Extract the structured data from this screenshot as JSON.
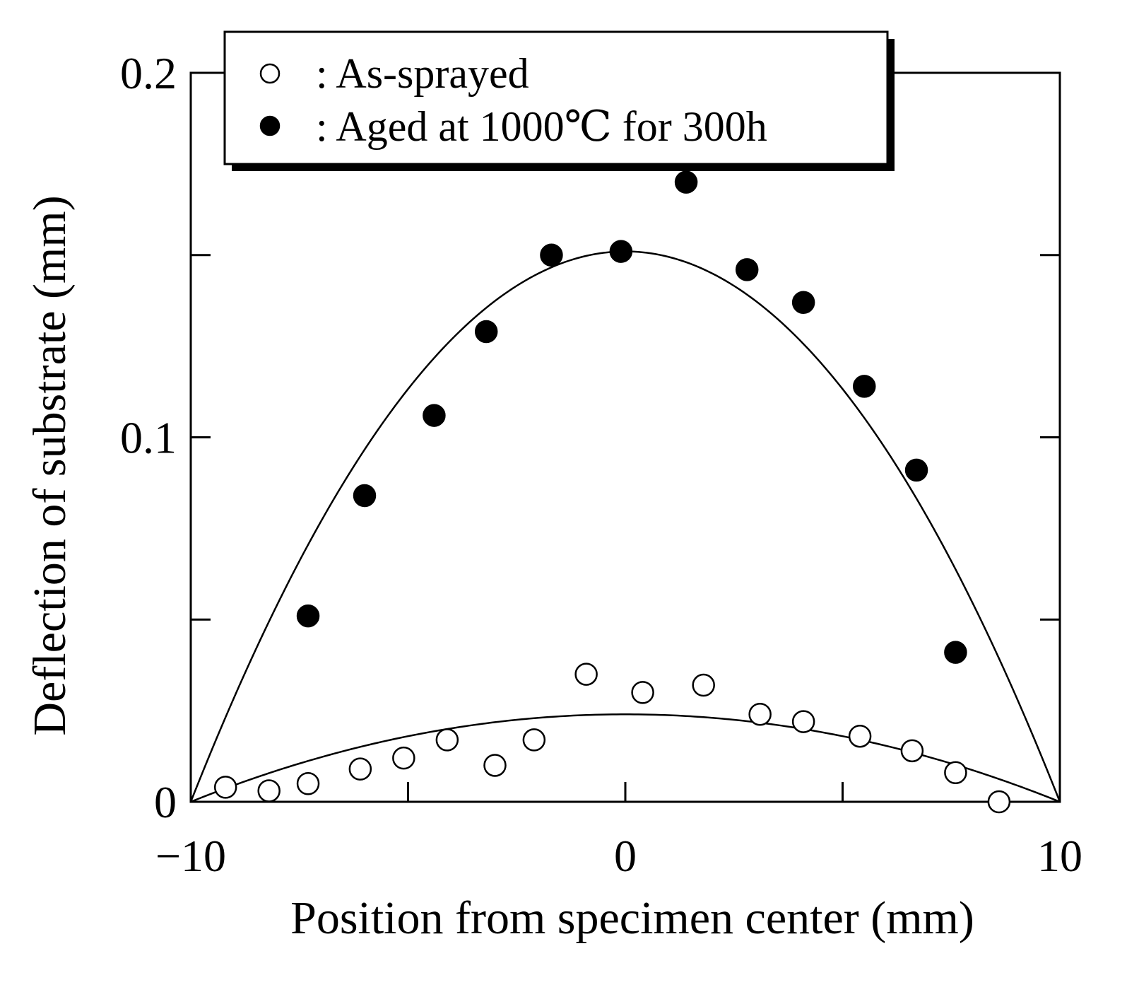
{
  "chart_data": {
    "type": "scatter",
    "title": "",
    "xlabel": "Position from specimen center (mm)",
    "ylabel": "Deflection of substrate (mm)",
    "xlim": [
      -10,
      10
    ],
    "ylim": [
      0,
      0.2
    ],
    "xticks": [
      -10,
      -5,
      0,
      5,
      10
    ],
    "xtick_labels": [
      "−10",
      "",
      "0",
      "",
      "10"
    ],
    "yticks": [
      0,
      0.05,
      0.1,
      0.15,
      0.2
    ],
    "ytick_labels": [
      "0",
      "",
      "0.1",
      "",
      "0.2"
    ],
    "grid": false,
    "legend_position": "top-left",
    "series": [
      {
        "name": "As-sprayed",
        "legend_label": ": As-sprayed",
        "marker": "open-circle",
        "x": [
          -9.2,
          -8.2,
          -7.3,
          -6.1,
          -5.1,
          -4.1,
          -3.0,
          -2.1,
          -0.9,
          0.4,
          1.8,
          3.1,
          4.1,
          5.4,
          6.6,
          7.6,
          8.6
        ],
        "y": [
          0.004,
          0.003,
          0.005,
          0.009,
          0.012,
          0.017,
          0.01,
          0.017,
          0.035,
          0.03,
          0.032,
          0.024,
          0.022,
          0.018,
          0.014,
          0.008,
          0.0
        ],
        "fit_curve": {
          "type": "parabola",
          "peak_x": 0,
          "peak_y": 0.024,
          "zeros": [
            -10,
            10
          ]
        }
      },
      {
        "name": "Aged at 1000℃ for 300h",
        "legend_label": ": Aged at 1000℃ for 300h",
        "marker": "filled-circle",
        "x": [
          -7.3,
          -6.0,
          -4.4,
          -3.2,
          -1.7,
          -0.1,
          1.4,
          2.8,
          4.1,
          5.5,
          6.7,
          7.6
        ],
        "y": [
          0.051,
          0.084,
          0.106,
          0.129,
          0.15,
          0.151,
          0.17,
          0.146,
          0.137,
          0.114,
          0.091,
          0.041
        ],
        "fit_curve": {
          "type": "parabola",
          "peak_x": 0,
          "peak_y": 0.151,
          "zeros": [
            -10,
            10
          ]
        }
      }
    ]
  }
}
